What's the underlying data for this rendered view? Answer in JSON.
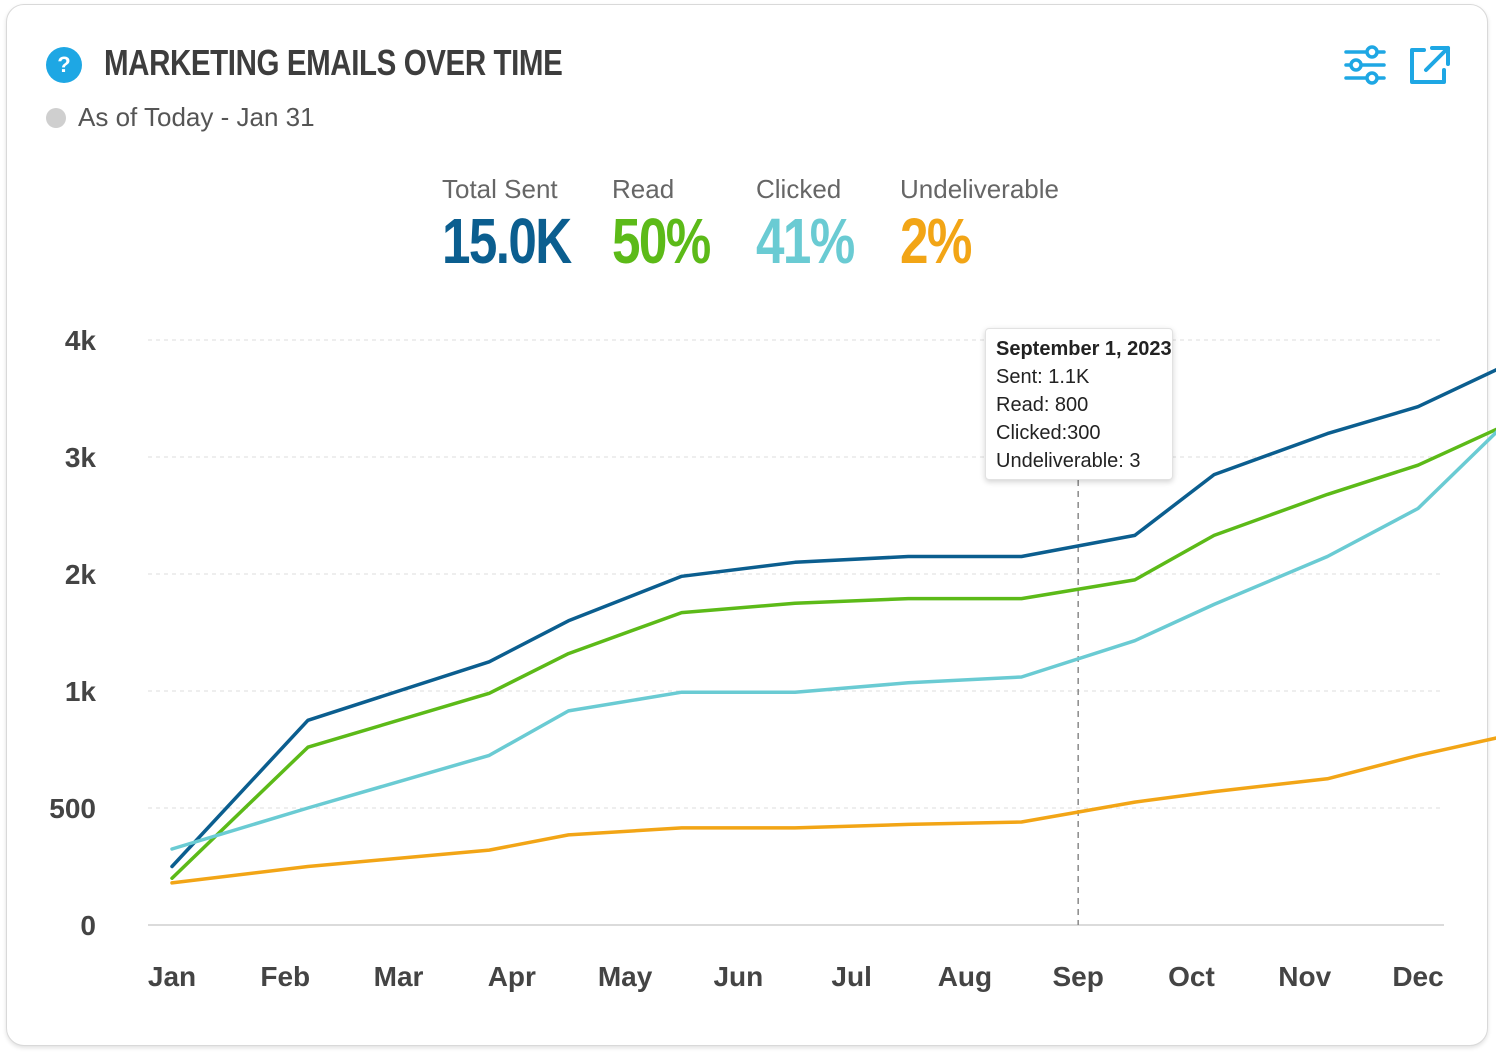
{
  "header": {
    "title": "MARKETING EMAILS OVER TIME",
    "help_icon": "question-icon",
    "help_symbol": "?",
    "as_of": "As of Today - Jan 31"
  },
  "toolbar": {
    "filter_icon": "sliders-icon",
    "expand_icon": "external-link-icon",
    "icon_color": "#1ea7e4"
  },
  "metrics": [
    {
      "label": "Total Sent",
      "value": "15.0K",
      "color": "#0b5e8f"
    },
    {
      "label": "Read",
      "value": "50%",
      "color": "#5cba18"
    },
    {
      "label": "Clicked",
      "value": "41%",
      "color": "#6acbd3"
    },
    {
      "label": "Undeliverable",
      "value": "2%",
      "color": "#f2a516"
    }
  ],
  "tooltip": {
    "title": "September 1, 2023",
    "sent": "Sent: 1.1K",
    "read": "Read: 800",
    "clicked": "Clicked:300",
    "undeliverable": "Undeliverable: 3"
  },
  "chart_data": {
    "type": "line",
    "title": "MARKETING EMAILS OVER TIME",
    "categories": [
      "Jan",
      "Feb",
      "Mar",
      "Apr",
      "May",
      "Jun",
      "Jul",
      "Aug",
      "Sep",
      "Oct",
      "Nov",
      "Dec"
    ],
    "y_ticks": [
      {
        "value": 0,
        "label": "0"
      },
      {
        "value": 1,
        "label": "500"
      },
      {
        "value": 2,
        "label": "1k"
      },
      {
        "value": 3,
        "label": "2k"
      },
      {
        "value": 4,
        "label": "3k"
      },
      {
        "value": 5,
        "label": "4k"
      }
    ],
    "ylim": [
      0,
      5
    ],
    "grid": true,
    "hover_x": 8.0,
    "series": [
      {
        "name": "Total Sent",
        "color": "#0b5e8f",
        "points": [
          [
            0,
            0.5
          ],
          [
            1.2,
            1.75
          ],
          [
            2.8,
            2.25
          ],
          [
            3.5,
            2.6
          ],
          [
            4.5,
            2.98
          ],
          [
            5.5,
            3.1
          ],
          [
            6.5,
            3.15
          ],
          [
            7.5,
            3.15
          ],
          [
            8.5,
            3.33
          ],
          [
            9.2,
            3.85
          ],
          [
            10.2,
            4.2
          ],
          [
            11,
            4.43
          ],
          [
            11.7,
            4.75
          ]
        ]
      },
      {
        "name": "Read",
        "color": "#5cba18",
        "points": [
          [
            0,
            0.4
          ],
          [
            1.2,
            1.52
          ],
          [
            2.8,
            1.98
          ],
          [
            3.5,
            2.32
          ],
          [
            4.5,
            2.67
          ],
          [
            5.5,
            2.75
          ],
          [
            6.5,
            2.79
          ],
          [
            7.5,
            2.79
          ],
          [
            8.5,
            2.95
          ],
          [
            9.2,
            3.33
          ],
          [
            10.2,
            3.68
          ],
          [
            11,
            3.93
          ],
          [
            11.7,
            4.24
          ]
        ]
      },
      {
        "name": "Clicked",
        "color": "#6acbd3",
        "points": [
          [
            0,
            0.65
          ],
          [
            1.2,
            1.0
          ],
          [
            2.8,
            1.45
          ],
          [
            3.5,
            1.83
          ],
          [
            4.5,
            1.99
          ],
          [
            5.5,
            1.99
          ],
          [
            6.5,
            2.07
          ],
          [
            7.5,
            2.12
          ],
          [
            8.5,
            2.43
          ],
          [
            9.2,
            2.74
          ],
          [
            10.2,
            3.15
          ],
          [
            11,
            3.56
          ],
          [
            11.7,
            4.22
          ]
        ]
      },
      {
        "name": "Undeliverable",
        "color": "#f2a516",
        "points": [
          [
            0,
            0.36
          ],
          [
            1.2,
            0.5
          ],
          [
            2.8,
            0.64
          ],
          [
            3.5,
            0.77
          ],
          [
            4.5,
            0.83
          ],
          [
            5.5,
            0.83
          ],
          [
            6.5,
            0.86
          ],
          [
            7.5,
            0.88
          ],
          [
            8.5,
            1.05
          ],
          [
            9.2,
            1.14
          ],
          [
            10.2,
            1.25
          ],
          [
            11,
            1.45
          ],
          [
            11.7,
            1.6
          ]
        ]
      }
    ]
  }
}
